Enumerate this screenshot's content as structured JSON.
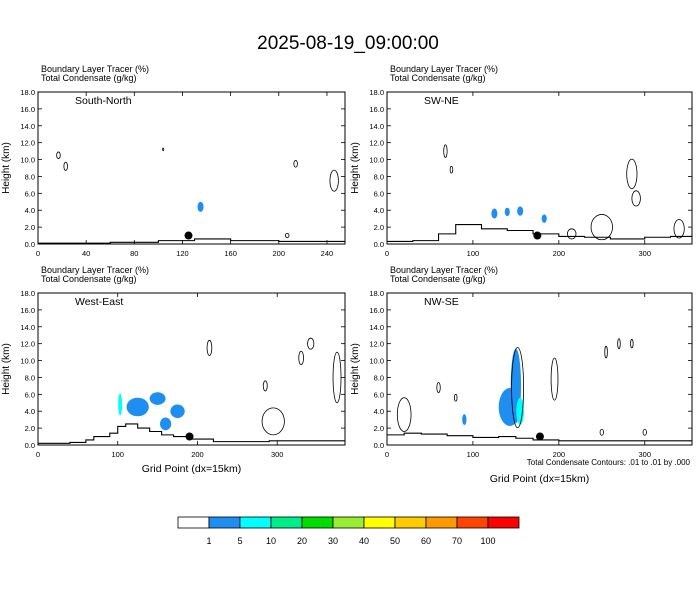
{
  "title": "2025-08-19_09:00:00",
  "panel_header_line1": "Boundary Layer Tracer   (%)",
  "panel_header_line2": "Total Condensate   (g/kg)",
  "ylabel": "Height (km)",
  "xlabel": "Grid Point (dx=15km)",
  "contour_note": "Total Condensate Contours: .01 to .01 by .000",
  "chart_data": [
    {
      "type": "heatmap",
      "title": "South-North",
      "xlim": [
        0,
        255
      ],
      "ylim": [
        0,
        18
      ],
      "xticks": [
        "0",
        "40",
        "80",
        "120",
        "160",
        "200",
        "240"
      ],
      "xtick_values": [
        0,
        40,
        80,
        120,
        160,
        200,
        240
      ],
      "yticks": [
        "0.0",
        "2.0",
        "4.0",
        "6.0",
        "8.0",
        "10.0",
        "12.0",
        "14.0",
        "16.0",
        "18.0"
      ],
      "ytick_values": [
        0,
        2,
        4,
        6,
        8,
        10,
        12,
        14,
        16,
        18
      ],
      "point": {
        "x": 125,
        "y": 1.0
      },
      "terrain": [
        [
          0,
          0.1
        ],
        [
          60,
          0.2
        ],
        [
          100,
          0.4
        ],
        [
          130,
          0.6
        ],
        [
          160,
          0.4
        ],
        [
          200,
          0.3
        ],
        [
          230,
          0.3
        ],
        [
          255,
          0.3
        ]
      ],
      "tracer_blobs": [
        {
          "x": 135,
          "y": 4.4,
          "w": 5,
          "h": 1.2,
          "value": 5
        }
      ],
      "condensate_contours": [
        {
          "x": 17,
          "y": 10.5,
          "w": 3,
          "h": 0.8
        },
        {
          "x": 23,
          "y": 9.2,
          "w": 3,
          "h": 1.0
        },
        {
          "x": 104,
          "y": 11.2,
          "w": 1,
          "h": 0.3
        },
        {
          "x": 214,
          "y": 9.5,
          "w": 3,
          "h": 0.8
        },
        {
          "x": 246,
          "y": 7.5,
          "w": 7,
          "h": 2.5
        },
        {
          "x": 207,
          "y": 1.0,
          "w": 3,
          "h": 0.5
        }
      ]
    },
    {
      "type": "heatmap",
      "title": "SW-NE",
      "xlim": [
        0,
        355
      ],
      "ylim": [
        0,
        18
      ],
      "xticks": [
        "0",
        "100",
        "200",
        "300"
      ],
      "xtick_values": [
        0,
        100,
        200,
        300
      ],
      "yticks": [
        "0.0",
        "2.0",
        "4.0",
        "6.0",
        "8.0",
        "10.0",
        "12.0",
        "14.0",
        "16.0",
        "18.0"
      ],
      "ytick_values": [
        0,
        2,
        4,
        6,
        8,
        10,
        12,
        14,
        16,
        18
      ],
      "point": {
        "x": 175,
        "y": 1.0
      },
      "terrain": [
        [
          0,
          0.3
        ],
        [
          30,
          0.4
        ],
        [
          60,
          1.2
        ],
        [
          80,
          2.3
        ],
        [
          110,
          1.8
        ],
        [
          140,
          1.6
        ],
        [
          170,
          1.2
        ],
        [
          200,
          0.9
        ],
        [
          230,
          0.8
        ],
        [
          260,
          0.6
        ],
        [
          300,
          0.8
        ],
        [
          330,
          0.9
        ],
        [
          355,
          1.0
        ]
      ],
      "tracer_blobs": [
        {
          "x": 125,
          "y": 3.6,
          "w": 7,
          "h": 1.2,
          "value": 5
        },
        {
          "x": 140,
          "y": 3.8,
          "w": 6,
          "h": 1.0,
          "value": 5
        },
        {
          "x": 155,
          "y": 3.9,
          "w": 7,
          "h": 1.1,
          "value": 5
        },
        {
          "x": 183,
          "y": 3.0,
          "w": 6,
          "h": 1.0,
          "value": 5
        }
      ],
      "condensate_contours": [
        {
          "x": 68,
          "y": 11.0,
          "w": 4,
          "h": 1.5
        },
        {
          "x": 75,
          "y": 8.8,
          "w": 3,
          "h": 0.8
        },
        {
          "x": 285,
          "y": 8.3,
          "w": 12,
          "h": 3.5
        },
        {
          "x": 290,
          "y": 5.4,
          "w": 10,
          "h": 1.8
        },
        {
          "x": 250,
          "y": 2.0,
          "w": 25,
          "h": 3.0
        },
        {
          "x": 340,
          "y": 1.8,
          "w": 12,
          "h": 2.2
        },
        {
          "x": 215,
          "y": 1.2,
          "w": 10,
          "h": 1.2
        }
      ]
    },
    {
      "type": "heatmap",
      "title": "West-East",
      "xlim": [
        0,
        385
      ],
      "ylim": [
        0,
        18
      ],
      "xticks": [
        "0",
        "100",
        "200",
        "300"
      ],
      "xtick_values": [
        0,
        100,
        200,
        300
      ],
      "yticks": [
        "0.0",
        "2.0",
        "4.0",
        "6.0",
        "8.0",
        "10.0",
        "12.0",
        "14.0",
        "16.0",
        "18.0"
      ],
      "ytick_values": [
        0,
        2,
        4,
        6,
        8,
        10,
        12,
        14,
        16,
        18
      ],
      "point": {
        "x": 190,
        "y": 1.0
      },
      "terrain": [
        [
          0,
          0.2
        ],
        [
          40,
          0.3
        ],
        [
          60,
          0.6
        ],
        [
          70,
          1.0
        ],
        [
          90,
          1.4
        ],
        [
          100,
          2.2
        ],
        [
          110,
          2.5
        ],
        [
          125,
          2.0
        ],
        [
          140,
          1.6
        ],
        [
          155,
          1.2
        ],
        [
          170,
          1.0
        ],
        [
          190,
          0.7
        ],
        [
          220,
          0.4
        ],
        [
          260,
          0.4
        ],
        [
          290,
          0.5
        ],
        [
          320,
          0.5
        ],
        [
          385,
          0.5
        ]
      ],
      "tracer_blobs": [
        {
          "x": 103,
          "y": 4.8,
          "w": 5,
          "h": 2.6,
          "value": 10
        },
        {
          "x": 125,
          "y": 4.5,
          "w": 28,
          "h": 2.2,
          "value": 5
        },
        {
          "x": 150,
          "y": 5.5,
          "w": 20,
          "h": 1.5,
          "value": 5
        },
        {
          "x": 175,
          "y": 4.0,
          "w": 18,
          "h": 1.6,
          "value": 5
        },
        {
          "x": 160,
          "y": 2.5,
          "w": 14,
          "h": 1.5,
          "value": 5
        }
      ],
      "condensate_contours": [
        {
          "x": 215,
          "y": 11.5,
          "w": 6,
          "h": 1.8
        },
        {
          "x": 330,
          "y": 10.3,
          "w": 6,
          "h": 1.6
        },
        {
          "x": 342,
          "y": 12.0,
          "w": 8,
          "h": 1.3
        },
        {
          "x": 285,
          "y": 7.0,
          "w": 5,
          "h": 1.2
        },
        {
          "x": 295,
          "y": 2.8,
          "w": 28,
          "h": 3.2
        },
        {
          "x": 375,
          "y": 8.0,
          "w": 10,
          "h": 6.0
        }
      ]
    },
    {
      "type": "heatmap",
      "title": "NW-SE",
      "xlim": [
        0,
        355
      ],
      "ylim": [
        0,
        18
      ],
      "xticks": [
        "0",
        "100",
        "200",
        "300"
      ],
      "xtick_values": [
        0,
        100,
        200,
        300
      ],
      "yticks": [
        "0.0",
        "2.0",
        "4.0",
        "6.0",
        "8.0",
        "10.0",
        "12.0",
        "14.0",
        "16.0",
        "18.0"
      ],
      "ytick_values": [
        0,
        2,
        4,
        6,
        8,
        10,
        12,
        14,
        16,
        18
      ],
      "point": {
        "x": 178,
        "y": 1.0
      },
      "terrain": [
        [
          0,
          1.2
        ],
        [
          20,
          1.4
        ],
        [
          40,
          1.3
        ],
        [
          70,
          1.1
        ],
        [
          100,
          0.9
        ],
        [
          130,
          1.0
        ],
        [
          150,
          0.8
        ],
        [
          170,
          0.6
        ],
        [
          200,
          0.5
        ],
        [
          230,
          0.5
        ],
        [
          260,
          0.5
        ],
        [
          300,
          0.5
        ],
        [
          355,
          0.5
        ]
      ],
      "tracer_blobs": [
        {
          "x": 143,
          "y": 4.5,
          "w": 26,
          "h": 4.5,
          "value": 5
        },
        {
          "x": 150,
          "y": 7.0,
          "w": 12,
          "h": 8.8,
          "value": 5
        },
        {
          "x": 155,
          "y": 4.0,
          "w": 9,
          "h": 3.2,
          "value": 10
        },
        {
          "x": 90,
          "y": 3.0,
          "w": 5,
          "h": 1.3,
          "value": 5
        }
      ],
      "condensate_contours": [
        {
          "x": 152,
          "y": 6.8,
          "w": 14,
          "h": 9.5
        },
        {
          "x": 195,
          "y": 7.8,
          "w": 8,
          "h": 5.0
        },
        {
          "x": 20,
          "y": 3.6,
          "w": 16,
          "h": 4.0
        },
        {
          "x": 60,
          "y": 6.8,
          "w": 4,
          "h": 1.2
        },
        {
          "x": 80,
          "y": 5.6,
          "w": 3,
          "h": 0.8
        },
        {
          "x": 250,
          "y": 1.5,
          "w": 4,
          "h": 0.7
        },
        {
          "x": 300,
          "y": 1.5,
          "w": 4,
          "h": 0.7
        },
        {
          "x": 255,
          "y": 11.0,
          "w": 3,
          "h": 1.4
        },
        {
          "x": 270,
          "y": 12.0,
          "w": 3,
          "h": 1.2
        },
        {
          "x": 285,
          "y": 12.0,
          "w": 3,
          "h": 1.0
        }
      ]
    }
  ],
  "colorbar": {
    "labels": [
      "1",
      "5",
      "10",
      "20",
      "30",
      "40",
      "50",
      "60",
      "70",
      "100"
    ],
    "colors": [
      "#ffffff",
      "#1f8ef1",
      "#00ffff",
      "#00ee88",
      "#00dd00",
      "#99ee33",
      "#ffff00",
      "#ffcc00",
      "#ff9900",
      "#ff4400",
      "#ff0000"
    ]
  }
}
